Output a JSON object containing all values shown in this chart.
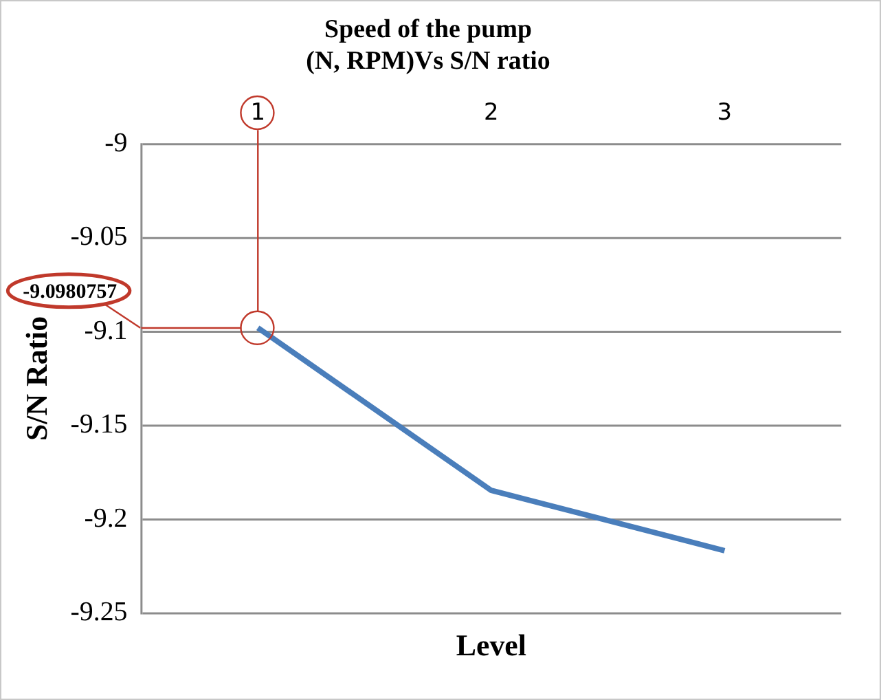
{
  "chart_data": {
    "type": "line",
    "title": "Speed of the pump\n(N, RPM)Vs S/N ratio",
    "xlabel": "Level",
    "ylabel": "S/N Ratio",
    "categories": [
      "1",
      "2",
      "3"
    ],
    "series": [
      {
        "color": "#4a7ebb",
        "values": [
          -9.098,
          -9.1846,
          -9.2167
        ]
      }
    ],
    "annotations": [
      "-9.0980757"
    ],
    "ylim": [
      -9.25,
      -9
    ],
    "yticks": [
      -9.25,
      -9.2,
      -9.15,
      -9.1,
      -9.05,
      -9
    ],
    "grid": "y",
    "legend": false,
    "marker": "none",
    "ref_lines": [
      {
        "axis": "x",
        "value": "1",
        "color": "#c0392b"
      },
      {
        "axis": "y",
        "value": -9.0980757,
        "color": "#c0392b"
      }
    ]
  }
}
